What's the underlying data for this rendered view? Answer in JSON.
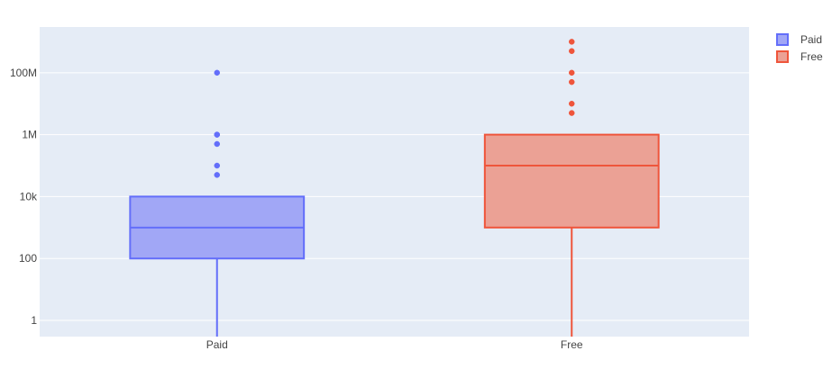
{
  "chart_data": {
    "type": "box",
    "title": "",
    "xlabel": "",
    "ylabel": "",
    "y_scale": "log",
    "ylim": [
      0.3,
      3000000000
    ],
    "y_ticks": [
      {
        "value": 1,
        "label": "1"
      },
      {
        "value": 100,
        "label": "100"
      },
      {
        "value": 10000,
        "label": "10k"
      },
      {
        "value": 1000000,
        "label": "1M"
      },
      {
        "value": 100000000,
        "label": "100M"
      }
    ],
    "categories": [
      "Paid",
      "Free"
    ],
    "grid": true,
    "legend_position": "top-right",
    "series": [
      {
        "name": "Paid",
        "color": "#636efa",
        "fill": "#a1a7f6",
        "lower_whisker": 0.3,
        "q1": 100,
        "median": 1000,
        "q3": 10000,
        "upper_whisker": 10000,
        "outliers": [
          500000,
          1000000,
          1000000,
          100000,
          50000,
          100000000
        ]
      },
      {
        "name": "Free",
        "color": "#ef553b",
        "fill": "#eba195",
        "lower_whisker": 0.3,
        "q1": 1000,
        "median": 100000,
        "q3": 1000000,
        "upper_whisker": 1000000,
        "outliers": [
          5000000,
          10000000,
          50000000,
          100000000,
          500000000,
          1000000000
        ]
      }
    ]
  }
}
